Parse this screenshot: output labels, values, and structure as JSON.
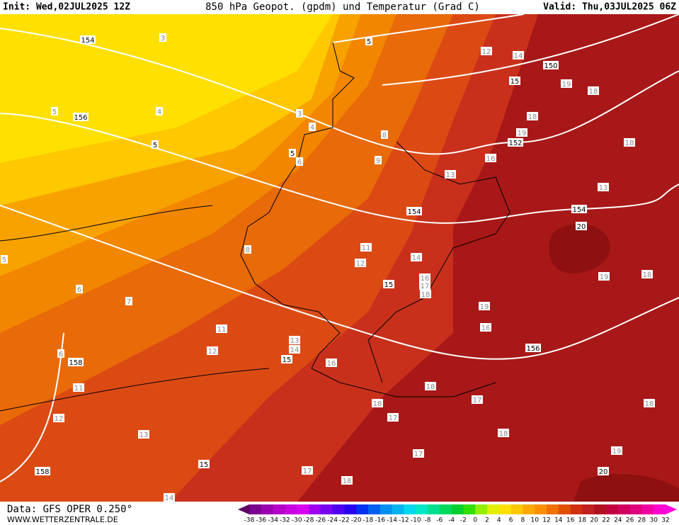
{
  "header": {
    "init": "Init: Wed,02JUL2025 12Z",
    "title": "850 hPa Geopot. (gpdm) und Temperatur (Grad C)",
    "valid": "Valid: Thu,03JUL2025 06Z"
  },
  "footer": {
    "data": "Data: GFS OPER 0.250°",
    "site": "WWW.WETTERZENTRALE.DE"
  },
  "legend": {
    "labels": [
      "-38",
      "-36",
      "-34",
      "-32",
      "-30",
      "-28",
      "-26",
      "-24",
      "-22",
      "-20",
      "-18",
      "-16",
      "-14",
      "-12",
      "-10",
      "-8",
      "-6",
      "-4",
      "-2",
      "0",
      "2",
      "4",
      "6",
      "8",
      "10",
      "12",
      "14",
      "16",
      "18",
      "20",
      "22",
      "24",
      "26",
      "28",
      "30",
      "32"
    ],
    "colors": [
      "#5a0060",
      "#7a0090",
      "#9a00b0",
      "#b400c8",
      "#c800e0",
      "#d800f0",
      "#a000f0",
      "#7800f0",
      "#5000f0",
      "#2800f0",
      "#0030f0",
      "#0060f0",
      "#0090f0",
      "#00b4f0",
      "#00d8f0",
      "#00e8c8",
      "#00e090",
      "#00d860",
      "#00d030",
      "#30e000",
      "#90f000",
      "#e0f000",
      "#ffe000",
      "#ffc800",
      "#ffa800",
      "#ff9000",
      "#f07000",
      "#e05000",
      "#d03010",
      "#c02020",
      "#b01020",
      "#c00040",
      "#d00060",
      "#e00080",
      "#f000a0",
      "#ff00d0",
      "#ff00e0"
    ]
  },
  "map": {
    "geopot_labels": [
      "154",
      "156",
      "158",
      "158",
      "150",
      "152",
      "154",
      "154",
      "156",
      "15",
      "5",
      "5",
      "5",
      "20",
      "15",
      "15",
      "15",
      "20"
    ],
    "temp_labels": [
      "3",
      "4",
      "3",
      "4",
      "5",
      "6",
      "8",
      "9",
      "12",
      "14",
      "19",
      "18",
      "18",
      "19",
      "16",
      "13",
      "18",
      "13",
      "8",
      "11",
      "12",
      "14",
      "16",
      "17",
      "18",
      "19",
      "18",
      "19",
      "16",
      "6",
      "7",
      "11",
      "12",
      "13",
      "14",
      "16",
      "6",
      "11",
      "12",
      "13",
      "18",
      "18",
      "17",
      "17",
      "18",
      "17",
      "19",
      "18",
      "17",
      "18",
      "14",
      "5"
    ]
  }
}
